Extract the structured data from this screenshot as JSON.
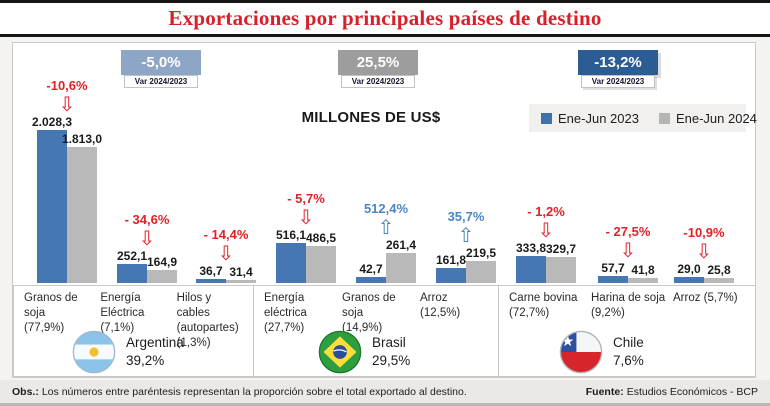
{
  "title": "Exportaciones por principales países de destino",
  "subtitle": "MILLONES DE US$",
  "var_label": "Var 2024/2023",
  "legend": {
    "s2023": "Ene-Jun 2023",
    "s2024": "Ene-Jun 2024"
  },
  "colors": {
    "bar_2023": "#4577b3",
    "bar_2024": "#b9b9ba",
    "badge_argentina": "#8ea6c6",
    "badge_brasil": "#9d9d9d",
    "badge_chile": "#2b5c94",
    "decrease_red": "#e22128",
    "increase_blue": "#4d86c3",
    "title_red": "#d6212a"
  },
  "sections": [
    {
      "country": "Argentina",
      "country_share": "39,2%",
      "var_badge": "-5,0%",
      "groups": [
        {
          "pct": "-10,6%",
          "arrow": "⇩",
          "v2023": "2.028,3",
          "v2024": "1.813,0",
          "h2023": 153,
          "h2024": 136
        },
        {
          "pct": "- 34,6%",
          "arrow": "⇩",
          "v2023": "252,1",
          "v2024": "164,9",
          "h2023": 19,
          "h2024": 13
        },
        {
          "pct": "- 14,4%",
          "arrow": "⇩",
          "v2023": "36,7",
          "v2024": "31,4",
          "h2023": 4,
          "h2024": 3
        }
      ],
      "cats": [
        {
          "l1": "Granos de soja",
          "l2": "(77,9%)"
        },
        {
          "l1": "Energía Eléctrica",
          "l2": "(7,1%)"
        },
        {
          "l1": "Hilos y cables",
          "l2": "(autopartes)",
          "l3": "(1,3%)"
        }
      ]
    },
    {
      "country": "Brasil",
      "country_share": "29,5%",
      "var_badge": "25,5%",
      "groups": [
        {
          "pct": "- 5,7%",
          "arrow": "⇩",
          "v2023": "516,1",
          "v2024": "486,5",
          "h2023": 40,
          "h2024": 37
        },
        {
          "pct": "512,4%",
          "arrow": "⇧",
          "v2023": "42,7",
          "v2024": "261,4",
          "h2023": 6,
          "h2024": 30
        },
        {
          "pct": "35,7%",
          "arrow": "⇧",
          "v2023": "161,8",
          "v2024": "219,5",
          "h2023": 15,
          "h2024": 22
        }
      ],
      "cats": [
        {
          "l1": "Energía eléctrica",
          "l2": "(27,7%)"
        },
        {
          "l1": "Granos de soja",
          "l2": "(14,9%)"
        },
        {
          "l1": "Arroz",
          "l2": "(12,5%)"
        }
      ]
    },
    {
      "country": "Chile",
      "country_share": "7,6%",
      "var_badge": "-13,2%",
      "groups": [
        {
          "pct": "- 1,2%",
          "arrow": "⇩",
          "v2023": "333,8",
          "v2024": "329,7",
          "h2023": 27,
          "h2024": 26
        },
        {
          "pct": "- 27,5%",
          "arrow": "⇩",
          "v2023": "57,7",
          "v2024": "41,8",
          "h2023": 7,
          "h2024": 5
        },
        {
          "pct": "-10,9%",
          "arrow": "⇩",
          "v2023": "29,0",
          "v2024": "25,8",
          "h2023": 6,
          "h2024": 5
        }
      ],
      "cats": [
        {
          "l1": "Carne bovina",
          "l2": "(72,7%)"
        },
        {
          "l1": "Harina de soja",
          "l2": "(9,2%)"
        },
        {
          "l1": "Arroz (5,7%)"
        }
      ]
    }
  ],
  "footer": {
    "obs_label": "Obs.:",
    "obs_text": "Los números entre paréntesis representan la proporción sobre el total exportado al destino.",
    "fuente_label": "Fuente:",
    "fuente_text": "Estudios Económicos - BCP"
  },
  "chart_data": {
    "type": "bar",
    "title": "Exportaciones por principales países de destino",
    "unit": "Millones de US$",
    "series_names": [
      "Ene-Jun 2023",
      "Ene-Jun 2024"
    ],
    "legend_position": "top-right",
    "grid": false,
    "panels": [
      {
        "country": "Argentina",
        "country_share_of_exports_pct": 39.2,
        "var_2024_2023_pct": -5.0,
        "categories": [
          "Granos de soja (77,9%)",
          "Energía Eléctrica (7,1%)",
          "Hilos y cables (autopartes) (1,3%)"
        ],
        "series": [
          {
            "name": "Ene-Jun 2023",
            "values": [
              2028.3,
              252.1,
              36.7
            ]
          },
          {
            "name": "Ene-Jun 2024",
            "values": [
              1813.0,
              164.9,
              31.4
            ]
          }
        ],
        "var_by_category_pct": [
          -10.6,
          -34.6,
          -14.4
        ]
      },
      {
        "country": "Brasil",
        "country_share_of_exports_pct": 29.5,
        "var_2024_2023_pct": 25.5,
        "categories": [
          "Energía eléctrica (27,7%)",
          "Granos de soja (14,9%)",
          "Arroz (12,5%)"
        ],
        "series": [
          {
            "name": "Ene-Jun 2023",
            "values": [
              516.1,
              42.7,
              161.8
            ]
          },
          {
            "name": "Ene-Jun 2024",
            "values": [
              486.5,
              261.4,
              219.5
            ]
          }
        ],
        "var_by_category_pct": [
          -5.7,
          512.4,
          35.7
        ]
      },
      {
        "country": "Chile",
        "country_share_of_exports_pct": 7.6,
        "var_2024_2023_pct": -13.2,
        "categories": [
          "Carne bovina (72,7%)",
          "Harina de soja (9,2%)",
          "Arroz (5,7%)"
        ],
        "series": [
          {
            "name": "Ene-Jun 2023",
            "values": [
              333.8,
              57.7,
              29.0
            ]
          },
          {
            "name": "Ene-Jun 2024",
            "values": [
              329.7,
              41.8,
              25.8
            ]
          }
        ],
        "var_by_category_pct": [
          -1.2,
          -27.5,
          -10.9
        ]
      }
    ]
  }
}
